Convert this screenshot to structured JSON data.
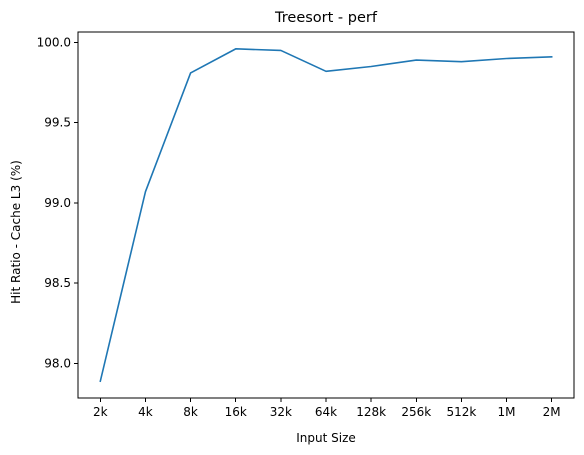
{
  "chart_data": {
    "type": "line",
    "title": "Treesort - perf",
    "xlabel": "Input Size",
    "ylabel": "Hit Ratio - Cache L3 (%)",
    "categories": [
      "2k",
      "4k",
      "8k",
      "16k",
      "32k",
      "64k",
      "128k",
      "256k",
      "512k",
      "1M",
      "2M"
    ],
    "series": [
      {
        "values": [
          97.89,
          99.07,
          99.81,
          99.96,
          99.95,
          99.82,
          99.85,
          99.89,
          99.88,
          99.9,
          99.91
        ]
      }
    ],
    "ylim": [
      97.785,
      100.065
    ],
    "yticks": [
      98.0,
      98.5,
      99.0,
      99.5,
      100.0
    ],
    "ytick_labels": [
      "98.0",
      "98.5",
      "99.0",
      "99.5",
      "100.0"
    ],
    "grid": false,
    "legend": "none",
    "colors": {
      "series": "#1f77b4"
    }
  }
}
